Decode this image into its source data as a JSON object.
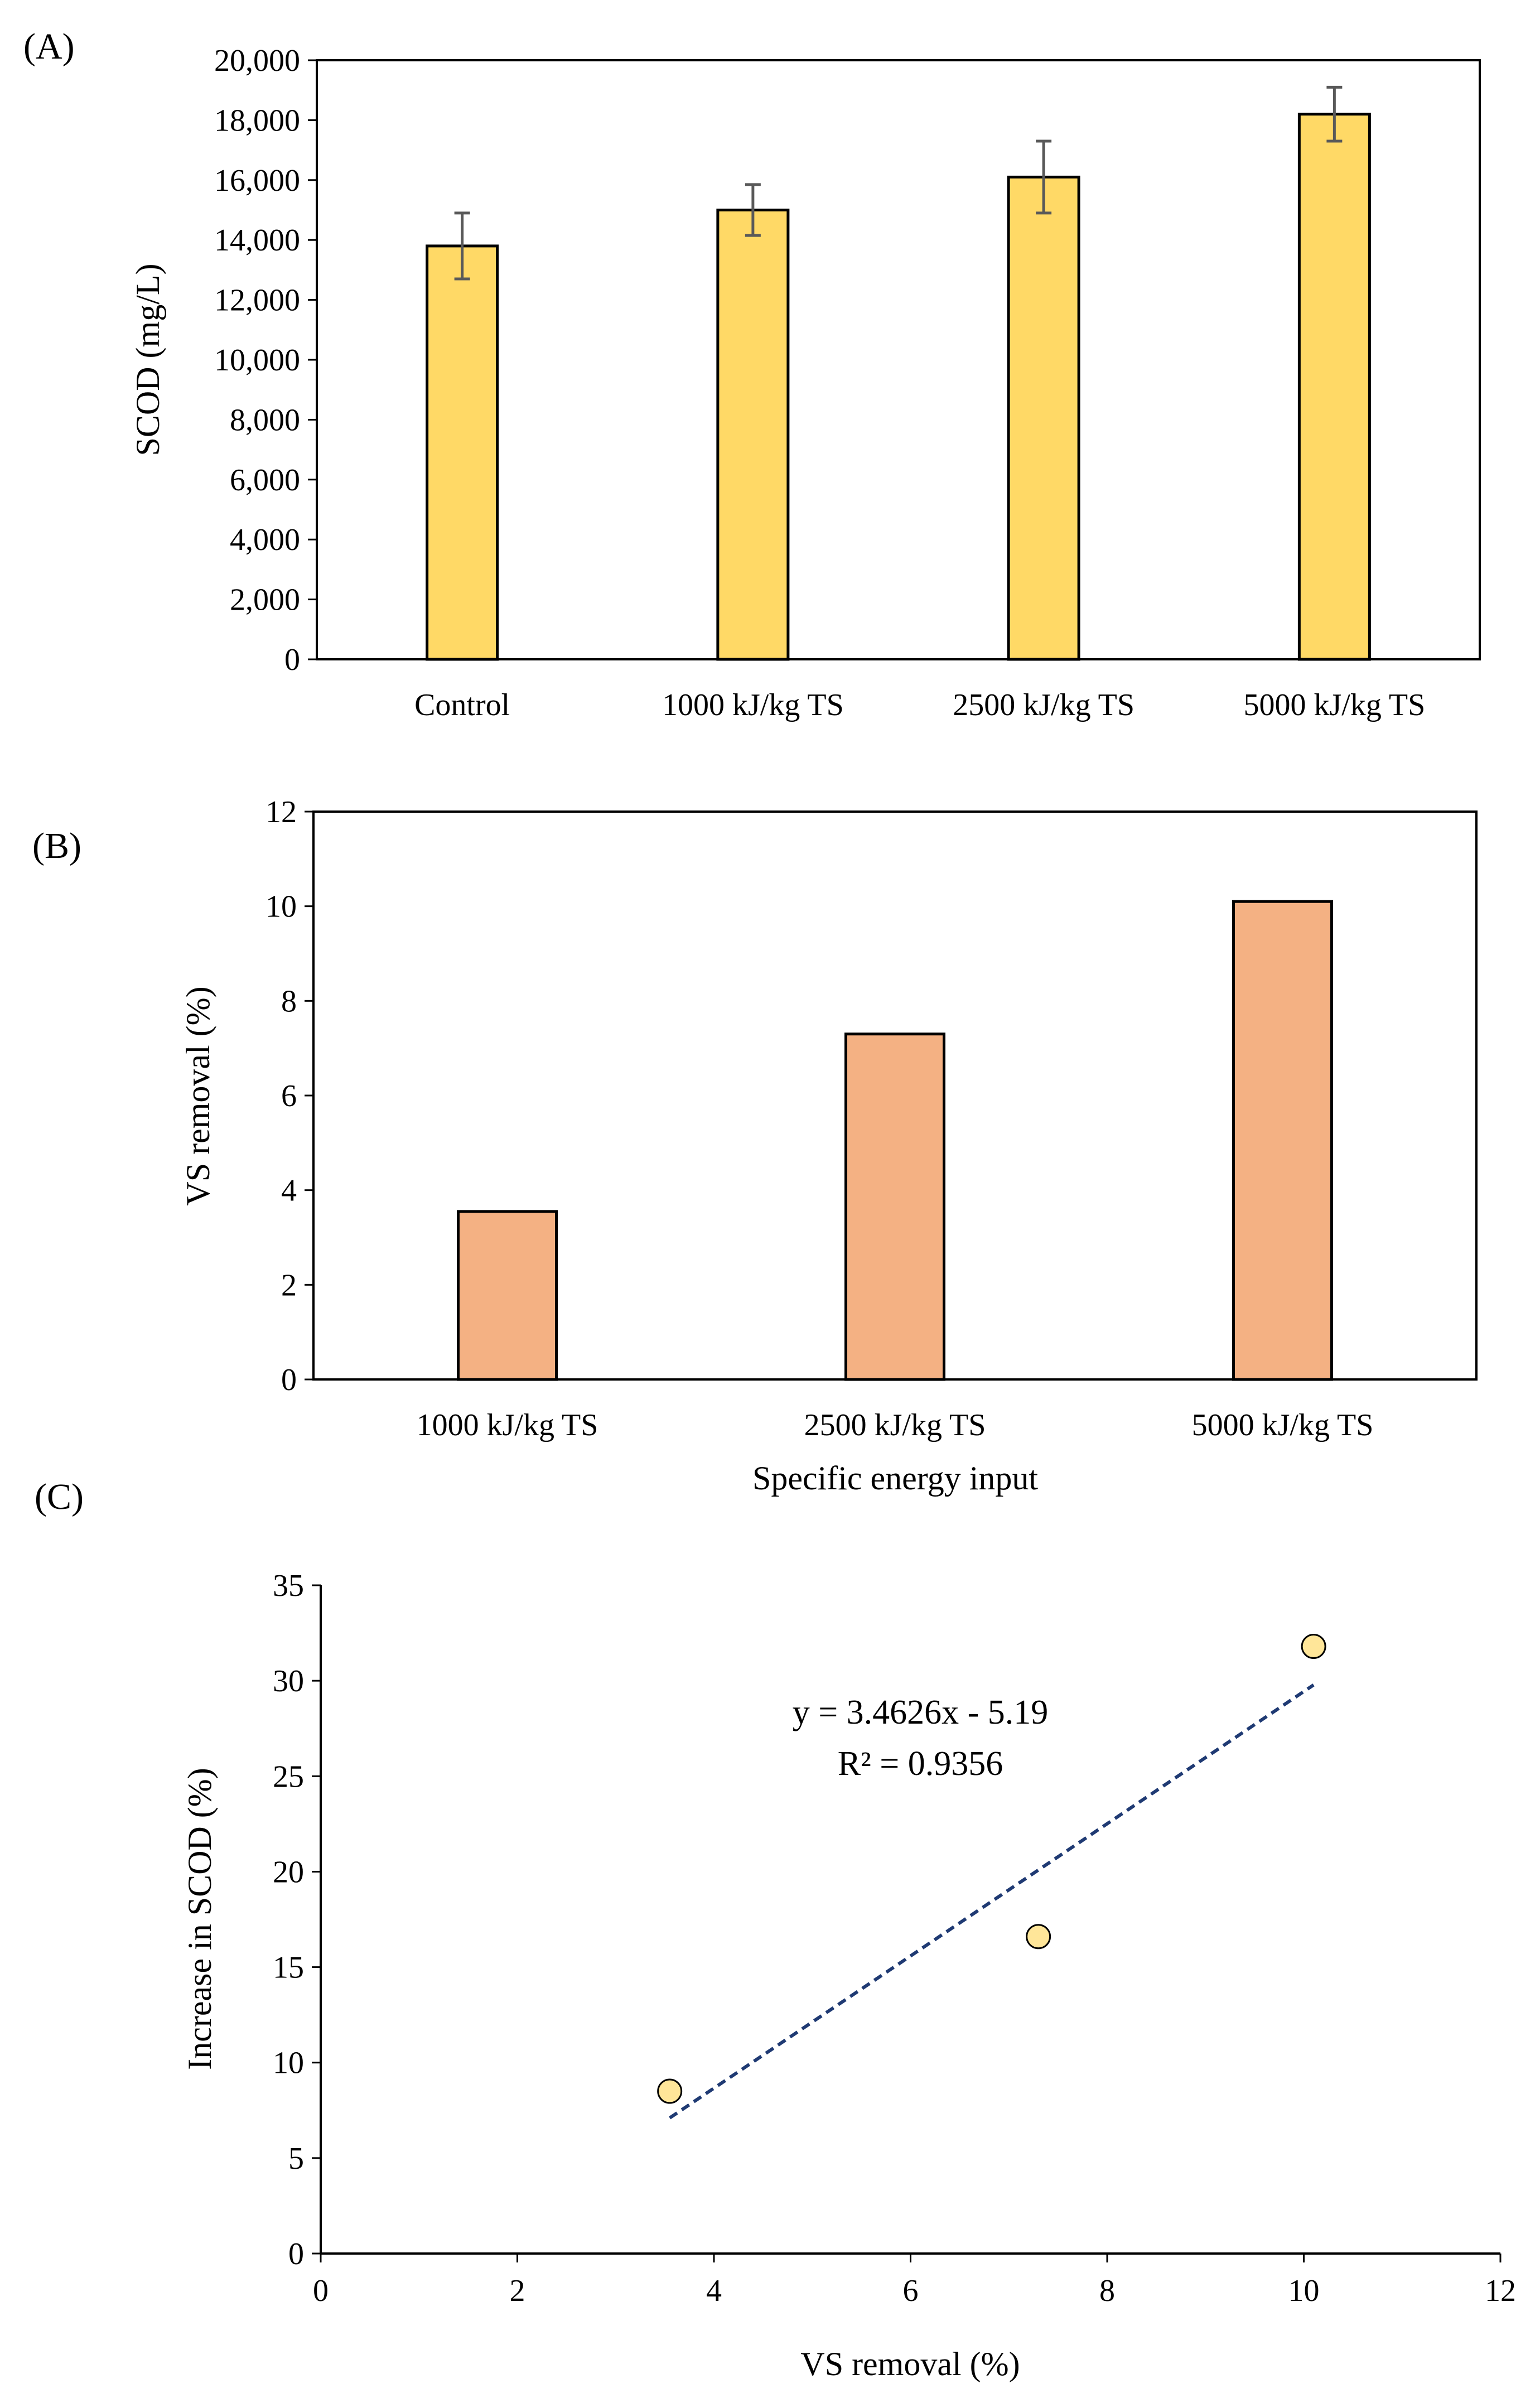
{
  "figure": {
    "panel_labels": [
      "(A)",
      "(B)",
      "(C)"
    ]
  },
  "colors": {
    "bar_a": "#FFD966",
    "bar_b": "#F4B183",
    "scatter": "#FFE699",
    "trendline": "#1F3A73",
    "error_bar": "#595959",
    "axis": "#000000"
  },
  "chart_data": [
    {
      "id": "A",
      "type": "bar",
      "title": "",
      "xlabel": "",
      "ylabel": "SCOD (mg/L)",
      "categories": [
        "Control",
        "1000  kJ/kg TS",
        "2500  kJ/kg TS",
        "5000   kJ/kg TS"
      ],
      "values": [
        13800,
        15000,
        16100,
        18200
      ],
      "errors": [
        1100,
        850,
        1200,
        900
      ],
      "ylim": [
        0,
        20000
      ],
      "yticks": [
        0,
        2000,
        4000,
        6000,
        8000,
        10000,
        12000,
        14000,
        16000,
        18000,
        20000
      ],
      "ytick_labels": [
        "0",
        "2,000",
        "4,000",
        "6,000",
        "8,000",
        "10,000",
        "12,000",
        "14,000",
        "16,000",
        "18,000",
        "20,000"
      ],
      "grid": false
    },
    {
      "id": "B",
      "type": "bar",
      "title": "",
      "xlabel": "Specific energy input",
      "ylabel": "VS removal (%)",
      "categories": [
        "1000  kJ/kg TS",
        "2500  kJ/kg TS",
        "5000   kJ/kg TS"
      ],
      "values": [
        3.55,
        7.3,
        10.1
      ],
      "ylim": [
        0,
        12
      ],
      "yticks": [
        0,
        2,
        4,
        6,
        8,
        10,
        12
      ],
      "ytick_labels": [
        "0",
        "2",
        "4",
        "6",
        "8",
        "10",
        "12"
      ],
      "grid": false
    },
    {
      "id": "C",
      "type": "scatter",
      "title": "",
      "xlabel": "VS removal (%)",
      "ylabel": "Increase in SCOD (%)",
      "x": [
        3.55,
        7.3,
        10.1
      ],
      "y": [
        8.5,
        16.6,
        31.8
      ],
      "xlim": [
        0,
        12
      ],
      "ylim": [
        0,
        35
      ],
      "xticks": [
        0,
        2,
        4,
        6,
        8,
        10,
        12
      ],
      "xtick_labels": [
        "0",
        "2",
        "4",
        "6",
        "8",
        "10",
        "12"
      ],
      "yticks": [
        0,
        5,
        10,
        15,
        20,
        25,
        30,
        35
      ],
      "ytick_labels": [
        "0",
        "5",
        "10",
        "15",
        "20",
        "25",
        "30",
        "35"
      ],
      "trendline": {
        "slope": 3.4626,
        "intercept": -5.19,
        "x_range": [
          3.55,
          10.1
        ],
        "equation": "y = 3.4626x  - 5.19",
        "r2": "R² = 0.9356"
      },
      "grid": false
    }
  ]
}
